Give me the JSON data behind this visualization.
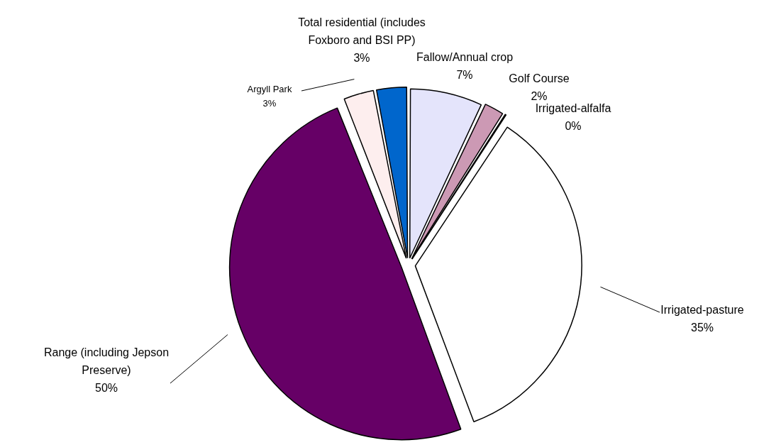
{
  "chart_data": {
    "type": "pie",
    "categories": [
      "Fallow/Annual crop",
      "Golf Course",
      "Irrigated-alfalfa",
      "Irrigated-pasture",
      "Range (including Jepson Preserve)",
      "Argyll Park",
      "Total residential (includes Foxboro and BSI PP)"
    ],
    "values": [
      7,
      2,
      0.3,
      35,
      49.7,
      3,
      3
    ],
    "value_labels": [
      "7%",
      "2%",
      "0%",
      "35%",
      "50%",
      "3%",
      "3%"
    ],
    "colors": [
      "#e4e4fb",
      "#cc99b4",
      "#ffffcc",
      "#ffffff",
      "#660066",
      "#fdeeee",
      "#0066cc"
    ],
    "legend": false
  }
}
